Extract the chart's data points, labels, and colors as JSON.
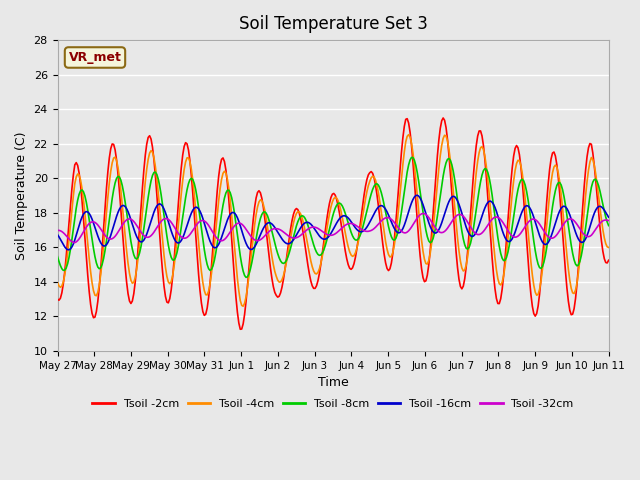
{
  "title": "Soil Temperature Set 3",
  "xlabel": "Time",
  "ylabel": "Soil Temperature (C)",
  "ylim": [
    10,
    28
  ],
  "yticks": [
    10,
    12,
    14,
    16,
    18,
    20,
    22,
    24,
    26,
    28
  ],
  "annotation_text": "VR_met",
  "annotation_color": "#8B0000",
  "annotation_bg": "#f5f5dc",
  "annotation_border": "#8B6914",
  "bg_color": "#e8e8e8",
  "legend_entries": [
    "Tsoil -2cm",
    "Tsoil -4cm",
    "Tsoil -8cm",
    "Tsoil -16cm",
    "Tsoil -32cm"
  ],
  "line_colors": [
    "#FF0000",
    "#FF8C00",
    "#00CC00",
    "#0000CC",
    "#CC00CC"
  ],
  "xtick_labels": [
    "May 27",
    "May 28",
    "May 29",
    "May 30",
    "May 31",
    "Jun 1",
    "Jun 2",
    "Jun 3",
    "Jun 4",
    "Jun 5",
    "Jun 6",
    "Jun 7",
    "Jun 8",
    "Jun 9",
    "Jun 10",
    "Jun 11"
  ],
  "num_points": 384,
  "days": 15
}
